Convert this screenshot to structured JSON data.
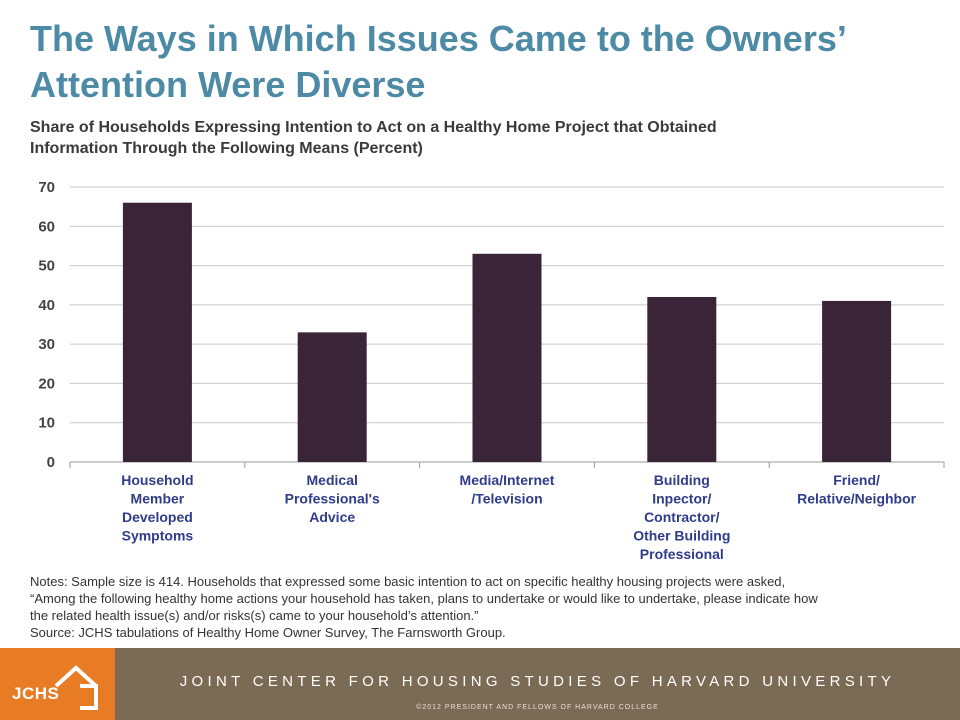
{
  "header": {
    "title_line1": "The Ways in Which Issues Came to the Owners’",
    "title_line2": "Attention Were Diverse",
    "subtitle_line1": "Share of Households Expressing Intention to Act on a Healthy Home Project that Obtained",
    "subtitle_line2": "Information Through the Following Means (Percent)"
  },
  "chart_data": {
    "type": "bar",
    "title": "Share of Households Expressing Intention to Act on a Healthy Home Project that Obtained Information Through the Following Means (Percent)",
    "categories": [
      [
        "Household",
        "Member",
        "Developed",
        "Symptoms"
      ],
      [
        "Medical",
        "Professional's",
        "Advice"
      ],
      [
        "Media/Internet",
        "/Television"
      ],
      [
        "Building",
        "Inpector/",
        "Contractor/",
        "Other Building",
        "Professional"
      ],
      [
        "Friend/",
        "Relative/Neighbor"
      ]
    ],
    "values": [
      66,
      33,
      53,
      42,
      41
    ],
    "ylim": [
      0,
      70
    ],
    "yticks": [
      0,
      10,
      20,
      30,
      40,
      50,
      60,
      70
    ],
    "grid": true,
    "legend": "none",
    "xlabel": "",
    "ylabel": ""
  },
  "notes": {
    "line1": "Notes: Sample size is 414.  Households that expressed some basic intention to act on specific healthy housing projects were asked,",
    "line2": "“Among the following healthy home actions your household has taken, plans to undertake or would like to undertake, please indicate how",
    "line3": "the related health issue(s) and/or risks(s) came to your household’s attention.”",
    "source": "Source: JCHS tabulations of Healthy Home Owner Survey, The Farnsworth Group."
  },
  "footer": {
    "logo_text": "JCHS",
    "org_name": "JOINT CENTER FOR HOUSING STUDIES OF HARVARD UNIVERSITY",
    "copyright": "©2012  PRESIDENT  AND  FELLOWS  OF  HARVARD  COLLEGE"
  },
  "colors": {
    "bar": "#3a2438",
    "grid": "#c8c8c8",
    "title": "#4d8aa6",
    "footer_orange": "#e87c24",
    "footer_brown": "#7b6a54"
  }
}
